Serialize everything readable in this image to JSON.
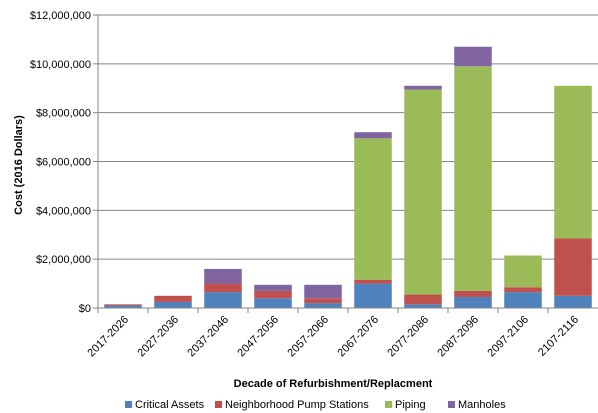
{
  "chart_data": {
    "type": "bar",
    "stacked": true,
    "categories": [
      "2017-2026",
      "2027-2036",
      "2037-2046",
      "2047-2056",
      "2057-2066",
      "2067-2076",
      "2077-2086",
      "2087-2096",
      "2097-2106",
      "2107-2116"
    ],
    "series": [
      {
        "name": "Critical Assets",
        "color": "#4F81BD",
        "values": [
          100000,
          250000,
          650000,
          400000,
          200000,
          1000000,
          150000,
          450000,
          650000,
          500000
        ]
      },
      {
        "name": "Neighborhood Pump Stations",
        "color": "#C0504D",
        "values": [
          50000,
          250000,
          350000,
          300000,
          200000,
          150000,
          400000,
          250000,
          200000,
          2350000
        ]
      },
      {
        "name": "Piping",
        "color": "#9BBB59",
        "values": [
          0,
          0,
          0,
          0,
          0,
          5800000,
          8400000,
          9200000,
          1300000,
          6250000
        ]
      },
      {
        "name": "Manholes",
        "color": "#8064A2",
        "values": [
          0,
          0,
          600000,
          250000,
          550000,
          250000,
          150000,
          800000,
          0,
          0
        ]
      }
    ],
    "xlabel": "Decade of Refurbishment/Replacment",
    "ylabel": "Cost (2016 Dollars)",
    "ylim": [
      0,
      12000000
    ],
    "yticks": [
      0,
      2000000,
      4000000,
      6000000,
      8000000,
      10000000,
      12000000
    ],
    "ytick_labels": [
      "$0",
      "$2,000,000",
      "$4,000,000",
      "$6,000,000",
      "$8,000,000",
      "$10,000,000",
      "$12,000,000"
    ],
    "grid": true,
    "legend_position": "bottom"
  }
}
